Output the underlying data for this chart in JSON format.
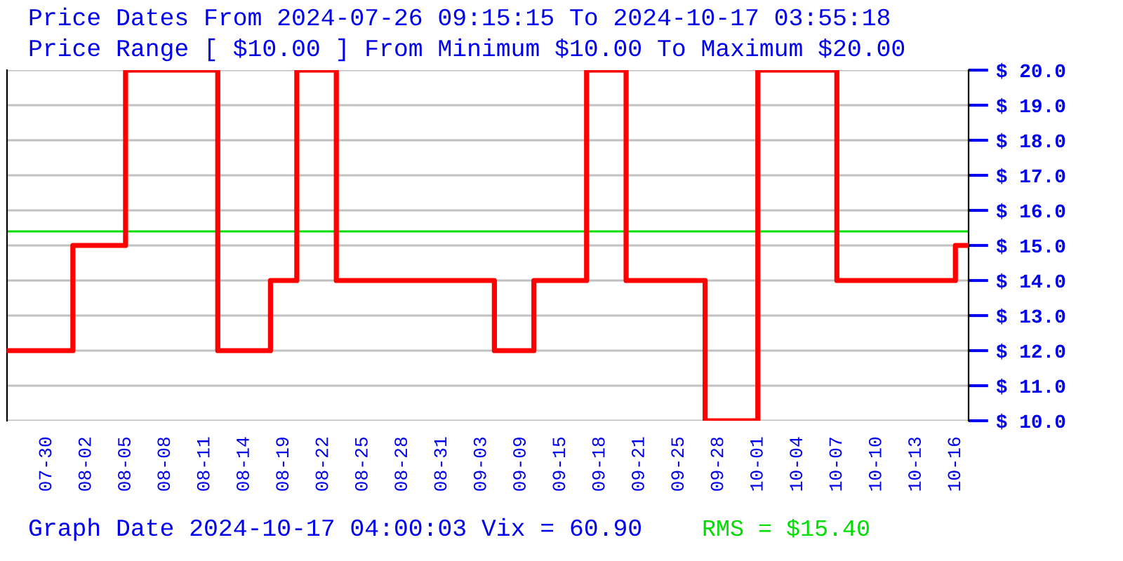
{
  "chart_data": {
    "type": "step",
    "title": "Price Dates From 2024-07-26 09:15:15 To 2024-10-17 03:55:18",
    "subtitle": "Price Range [ $10.00 ] From Minimum $10.00 To Maximum $20.00",
    "annotations": [
      "Graph Date 2024-10-17 04:00:03 Vix = 60.90"
    ],
    "categories": [
      null,
      null,
      null,
      "07-30",
      null,
      null,
      "08-02",
      null,
      null,
      "08-05",
      null,
      null,
      "08-08",
      null,
      null,
      "08-11",
      null,
      null,
      "08-14",
      null,
      null,
      "08-19",
      null,
      null,
      "08-22",
      null,
      null,
      "08-25",
      null,
      null,
      "08-28",
      null,
      null,
      "08-31",
      null,
      null,
      "09-03",
      null,
      null,
      "09-09",
      null,
      null,
      "09-15",
      null,
      null,
      "09-18",
      null,
      null,
      "09-21",
      null,
      null,
      "09-25",
      null,
      null,
      "09-28",
      null,
      null,
      "10-01",
      null,
      null,
      "10-04",
      null,
      null,
      "10-07",
      null,
      null,
      "10-10",
      null,
      null,
      "10-13",
      null,
      null,
      "10-16",
      null
    ],
    "series": [
      {
        "color": "#ff0000",
        "values": [
          12,
          12,
          12,
          12,
          12,
          15,
          15,
          15,
          15,
          20,
          20,
          20,
          20,
          20,
          20,
          20,
          12,
          12,
          12,
          12,
          14,
          14,
          20,
          20,
          20,
          14,
          14,
          14,
          14,
          14,
          14,
          14,
          14,
          14,
          14,
          14,
          14,
          12,
          12,
          12,
          14,
          14,
          14,
          14,
          20,
          20,
          20,
          14,
          14,
          14,
          14,
          14,
          14,
          10,
          10,
          10,
          10,
          20,
          20,
          20,
          20,
          20,
          20,
          14,
          14,
          14,
          14,
          14,
          14,
          14,
          14,
          14,
          15,
          15
        ]
      }
    ],
    "ylim": [
      10,
      20
    ],
    "yticks": [
      {
        "value": 10,
        "label": "$ 10.0"
      },
      {
        "value": 11,
        "label": "$ 11.0"
      },
      {
        "value": 12,
        "label": "$ 12.0"
      },
      {
        "value": 13,
        "label": "$ 13.0"
      },
      {
        "value": 14,
        "label": "$ 14.0"
      },
      {
        "value": 15,
        "label": "$ 15.0"
      },
      {
        "value": 16,
        "label": "$ 16.0"
      },
      {
        "value": 17,
        "label": "$ 17.0"
      },
      {
        "value": 18,
        "label": "$ 18.0"
      },
      {
        "value": 19,
        "label": "$ 19.0"
      },
      {
        "value": 20,
        "label": "$ 20.0"
      }
    ],
    "ref_lines": [
      {
        "axis": "y",
        "value": 15.4,
        "label": "RMS = $15.40",
        "color": "#00dd00"
      }
    ],
    "grid": "y",
    "line_style": "solid"
  }
}
